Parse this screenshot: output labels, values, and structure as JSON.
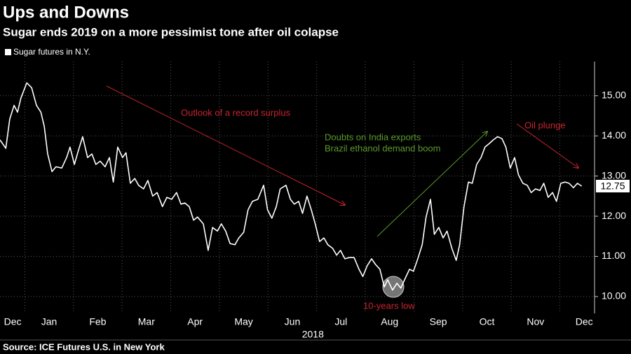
{
  "chart_data": {
    "type": "line",
    "title": "Ups and Downs",
    "subtitle": "Sugar ends 2019 on a more pessimist tone after oil colapse",
    "source": "Source: ICE Futures U.S. in New York",
    "xlabel": "2018",
    "xlim": [
      0.49,
      12.67
    ],
    "xticks": [
      {
        "value": 0.75,
        "label": "Dec"
      },
      {
        "value": 1.5,
        "label": "Jan"
      },
      {
        "value": 2.5,
        "label": "Feb"
      },
      {
        "value": 3.5,
        "label": "Mar"
      },
      {
        "value": 4.5,
        "label": "Apr"
      },
      {
        "value": 5.5,
        "label": "May"
      },
      {
        "value": 6.5,
        "label": "Jun"
      },
      {
        "value": 7.5,
        "label": "Jul"
      },
      {
        "value": 8.5,
        "label": "Aug"
      },
      {
        "value": 9.5,
        "label": "Sep"
      },
      {
        "value": 10.5,
        "label": "Oct"
      },
      {
        "value": 11.5,
        "label": "Nov"
      },
      {
        "value": 12.5,
        "label": "Dec"
      }
    ],
    "xgrid": [
      1,
      2,
      3,
      4,
      5,
      6,
      7,
      8,
      9,
      10,
      11,
      12
    ],
    "ylim": [
      9.58,
      15.85
    ],
    "yticks": [
      {
        "value": 10,
        "label": "10.00"
      },
      {
        "value": 11,
        "label": "11.00"
      },
      {
        "value": 12,
        "label": "12.00"
      },
      {
        "value": 13,
        "label": "13.00"
      },
      {
        "value": 14,
        "label": "14.00"
      },
      {
        "value": 15,
        "label": "15.00"
      }
    ],
    "grid": true,
    "legend": "top-left",
    "series": [
      {
        "name": "Sugar futures in N.Y.",
        "color": "#ffffff",
        "x": [
          0.49,
          0.61,
          0.69,
          0.78,
          0.85,
          0.92,
          1.04,
          1.14,
          1.24,
          1.33,
          1.4,
          1.47,
          1.56,
          1.64,
          1.76,
          1.86,
          1.93,
          2.02,
          2.1,
          2.19,
          2.29,
          2.38,
          2.46,
          2.55,
          2.65,
          2.74,
          2.82,
          2.91,
          3.01,
          3.08,
          3.17,
          3.26,
          3.34,
          3.44,
          3.53,
          3.63,
          3.72,
          3.83,
          3.92,
          4.02,
          4.12,
          4.21,
          4.29,
          4.38,
          4.47,
          4.55,
          4.67,
          4.77,
          4.86,
          4.96,
          5.04,
          5.13,
          5.22,
          5.32,
          5.4,
          5.5,
          5.59,
          5.68,
          5.79,
          5.91,
          5.99,
          6.08,
          6.17,
          6.25,
          6.37,
          6.46,
          6.54,
          6.63,
          6.71,
          6.8,
          6.89,
          6.97,
          7.06,
          7.15,
          7.23,
          7.33,
          7.41,
          7.49,
          7.58,
          7.67,
          7.77,
          7.87,
          7.95,
          8.04,
          8.13,
          8.21,
          8.3,
          8.39,
          8.46,
          8.56,
          8.65,
          8.73,
          8.82,
          8.91,
          8.99,
          9.08,
          9.17,
          9.25,
          9.34,
          9.42,
          9.51,
          9.6,
          9.68,
          9.78,
          9.87,
          9.94,
          10.03,
          10.12,
          10.2,
          10.29,
          10.38,
          10.46,
          10.55,
          10.63,
          10.72,
          10.81,
          10.89,
          10.98,
          11.07,
          11.15,
          11.24,
          11.33,
          11.41,
          11.5,
          11.59,
          11.67,
          11.76,
          11.85,
          11.93,
          12.02,
          12.11,
          12.19,
          12.28,
          12.36,
          12.45
        ],
        "values": [
          13.9,
          13.69,
          14.42,
          14.76,
          14.59,
          14.94,
          15.32,
          15.2,
          14.76,
          14.59,
          14.24,
          13.55,
          13.11,
          13.23,
          13.2,
          13.46,
          13.72,
          13.29,
          13.63,
          13.98,
          13.46,
          13.55,
          13.29,
          13.37,
          13.23,
          13.46,
          12.85,
          13.72,
          13.46,
          13.58,
          12.82,
          12.94,
          12.77,
          12.68,
          12.89,
          12.5,
          12.59,
          12.24,
          12.47,
          12.42,
          12.59,
          12.3,
          12.33,
          12.24,
          11.9,
          11.98,
          11.81,
          11.15,
          11.72,
          11.63,
          11.81,
          11.63,
          11.32,
          11.29,
          11.46,
          11.6,
          12.16,
          12.37,
          12.42,
          12.77,
          12.16,
          11.95,
          12.24,
          12.68,
          12.77,
          12.42,
          12.3,
          12.37,
          12.07,
          12.5,
          12.16,
          11.81,
          11.37,
          11.46,
          11.29,
          11.2,
          11.03,
          11.15,
          10.94,
          10.97,
          10.97,
          10.68,
          10.5,
          10.77,
          10.94,
          10.8,
          10.68,
          10.24,
          10.42,
          10.16,
          10.33,
          10.21,
          10.45,
          10.68,
          10.63,
          10.94,
          11.29,
          11.98,
          12.42,
          11.55,
          11.72,
          11.46,
          11.63,
          11.2,
          10.9,
          11.29,
          12.24,
          12.85,
          12.82,
          13.29,
          13.46,
          13.72,
          13.81,
          13.9,
          13.98,
          13.93,
          13.72,
          13.2,
          13.46,
          13.03,
          12.82,
          12.77,
          12.59,
          12.68,
          12.64,
          12.82,
          12.47,
          12.59,
          12.37,
          12.82,
          12.85,
          12.82,
          12.71,
          12.82,
          12.75
        ]
      }
    ],
    "annotations": [
      {
        "text": "Outlook of a record surplus",
        "color": "#c8242f"
      },
      {
        "text": "Doubts on India exports",
        "color": "#5a9a2a"
      },
      {
        "text": "Brazil ethanol demand boom",
        "color": "#5a9a2a"
      },
      {
        "text": "Oil plunge",
        "color": "#c8242f"
      },
      {
        "text": "10-years low",
        "color": "#c8242f"
      }
    ]
  }
}
